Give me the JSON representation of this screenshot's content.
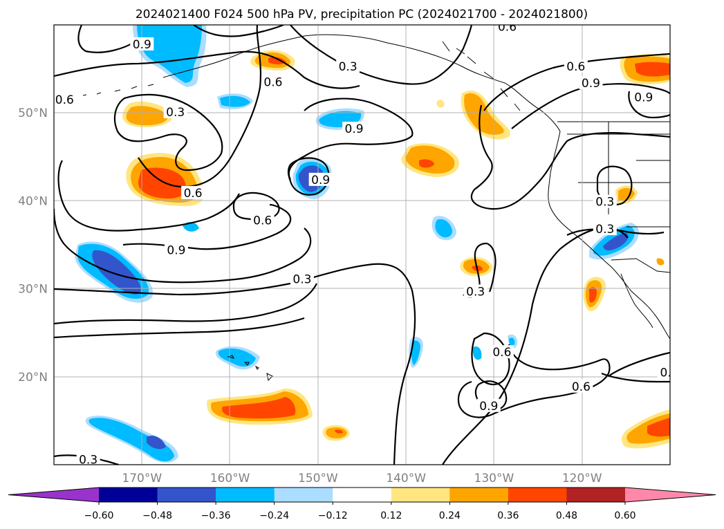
{
  "chart_data": {
    "type": "contour-map",
    "title": "2024021400 F024 500 hPa PV, precipitation PC (2024021700 - 2024021800)",
    "projection": "PlateCarree",
    "extent": {
      "lon": [
        -180,
        -110
      ],
      "lat": [
        10,
        60
      ]
    },
    "lat_ticks": [
      {
        "value": 20,
        "label": "20°N"
      },
      {
        "value": 30,
        "label": "30°N"
      },
      {
        "value": 40,
        "label": "40°N"
      },
      {
        "value": 50,
        "label": "50°N"
      }
    ],
    "lon_ticks": [
      {
        "value": -170,
        "label": "170°W"
      },
      {
        "value": -160,
        "label": "160°W"
      },
      {
        "value": -150,
        "label": "150°W"
      },
      {
        "value": -140,
        "label": "140°W"
      },
      {
        "value": -130,
        "label": "130°W"
      },
      {
        "value": -120,
        "label": "120°W"
      }
    ],
    "gridlines": true,
    "contour_field": "500 hPa PV",
    "contour_levels": [
      0.3,
      0.6,
      0.9
    ],
    "contour_labels": [
      {
        "text": "0.9",
        "lon": -170,
        "lat": 57.8
      },
      {
        "text": "0.6",
        "lon": -178.8,
        "lat": 51.5
      },
      {
        "text": "0.3",
        "lon": -166.2,
        "lat": 50.1
      },
      {
        "text": "0.6",
        "lon": -155.1,
        "lat": 53.5
      },
      {
        "text": "0.3",
        "lon": -146.6,
        "lat": 55.3
      },
      {
        "text": "0.9",
        "lon": -145.9,
        "lat": 48.2
      },
      {
        "text": "0.9",
        "lon": -149.7,
        "lat": 42.4
      },
      {
        "text": "0.6",
        "lon": -164.2,
        "lat": 40.9
      },
      {
        "text": "0.6",
        "lon": -156.3,
        "lat": 37.8
      },
      {
        "text": "0.9",
        "lon": -166.1,
        "lat": 34.4
      },
      {
        "text": "0.3",
        "lon": -151.8,
        "lat": 31.1
      },
      {
        "text": "0.3",
        "lon": -132.1,
        "lat": 29.7
      },
      {
        "text": "0.6",
        "lon": -128.5,
        "lat": 59.8
      },
      {
        "text": "0.6",
        "lon": -120.7,
        "lat": 55.3
      },
      {
        "text": "0.9",
        "lon": -119.0,
        "lat": 53.4
      },
      {
        "text": "0.9",
        "lon": -113.0,
        "lat": 51.8
      },
      {
        "text": "0.3",
        "lon": -117.4,
        "lat": 39.9
      },
      {
        "text": "0.3",
        "lon": -117.4,
        "lat": 36.8
      },
      {
        "text": "0.6",
        "lon": -129.1,
        "lat": 22.8
      },
      {
        "text": "0.9",
        "lon": -130.6,
        "lat": 16.7
      },
      {
        "text": "0.6",
        "lon": -120.1,
        "lat": 18.9
      },
      {
        "text": "0.",
        "lon": -110.5,
        "lat": 20.5
      },
      {
        "text": "0.3",
        "lon": -176.1,
        "lat": 10.6
      }
    ],
    "fill_field": "precipitation PC",
    "colorbar": {
      "extend": "both",
      "levels": [
        -0.6,
        -0.48,
        -0.36,
        -0.24,
        -0.12,
        0.12,
        0.24,
        0.36,
        0.48,
        0.6
      ],
      "tick_labels": [
        "−0.60",
        "−0.48",
        "−0.36",
        "−0.24",
        "−0.12",
        "0.12",
        "0.24",
        "0.36",
        "0.48",
        "0.60"
      ],
      "colors": [
        "#9933cc",
        "#000099",
        "#3355cc",
        "#00bbff",
        "#aaddff",
        "#ffffff",
        "#ffe680",
        "#ffa500",
        "#ff4500",
        "#b22222",
        "#ff88aa"
      ]
    }
  }
}
